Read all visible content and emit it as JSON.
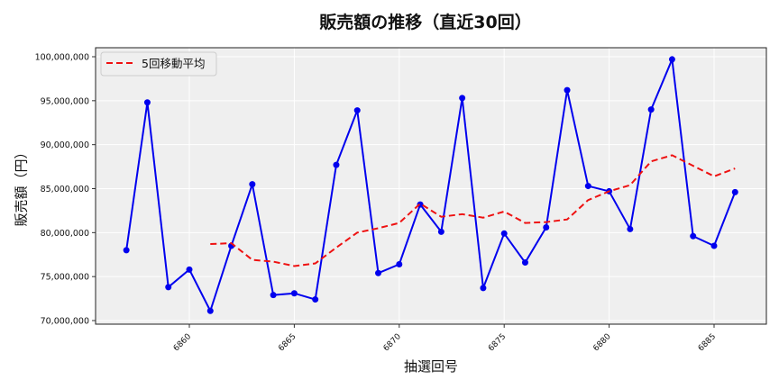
{
  "chart_data": {
    "type": "line",
    "title": "販売額の推移（直近30回）",
    "xlabel": "抽選回号",
    "ylabel": "販売額（円）",
    "x": [
      6857,
      6858,
      6859,
      6860,
      6861,
      6862,
      6863,
      6864,
      6865,
      6866,
      6867,
      6868,
      6869,
      6870,
      6871,
      6872,
      6873,
      6874,
      6875,
      6876,
      6877,
      6878,
      6879,
      6880,
      6881,
      6882,
      6883,
      6884,
      6885,
      6886
    ],
    "series": [
      {
        "name": "販売額",
        "style": "solid-with-markers",
        "color": "#0000ee",
        "values": [
          78000000,
          94800000,
          73800000,
          75800000,
          71100000,
          78500000,
          85500000,
          72900000,
          73100000,
          72400000,
          87700000,
          93900000,
          75400000,
          76400000,
          83200000,
          80100000,
          95300000,
          73700000,
          79900000,
          76600000,
          80600000,
          96200000,
          85300000,
          84700000,
          80400000,
          94000000,
          99700000,
          79600000,
          78500000,
          84600000
        ]
      },
      {
        "name": "5回移動平均",
        "style": "dashed",
        "color": "#ee1111",
        "values": [
          null,
          null,
          null,
          null,
          78700000,
          78800000,
          76900000,
          76700000,
          76200000,
          76500000,
          78300000,
          80000000,
          80500000,
          81100000,
          83300000,
          81800000,
          82100000,
          81700000,
          82400000,
          81100000,
          81200000,
          81500000,
          83700000,
          84700000,
          85400000,
          88100000,
          88800000,
          87600000,
          86400000,
          87300000
        ]
      }
    ],
    "xticks": [
      6860,
      6865,
      6870,
      6875,
      6880,
      6885
    ],
    "yticks": [
      70000000,
      75000000,
      80000000,
      85000000,
      90000000,
      95000000,
      100000000
    ],
    "ytick_labels": [
      "70,000,000",
      "75,000,000",
      "80,000,000",
      "85,000,000",
      "90,000,000",
      "95,000,000",
      "100,000,000"
    ],
    "xlim": [
      6856,
      6887
    ],
    "ylim": [
      69800000,
      101200000
    ],
    "grid": true,
    "legend": {
      "position": "upper left",
      "entries": [
        "5回移動平均"
      ]
    },
    "background": "#efefef"
  }
}
